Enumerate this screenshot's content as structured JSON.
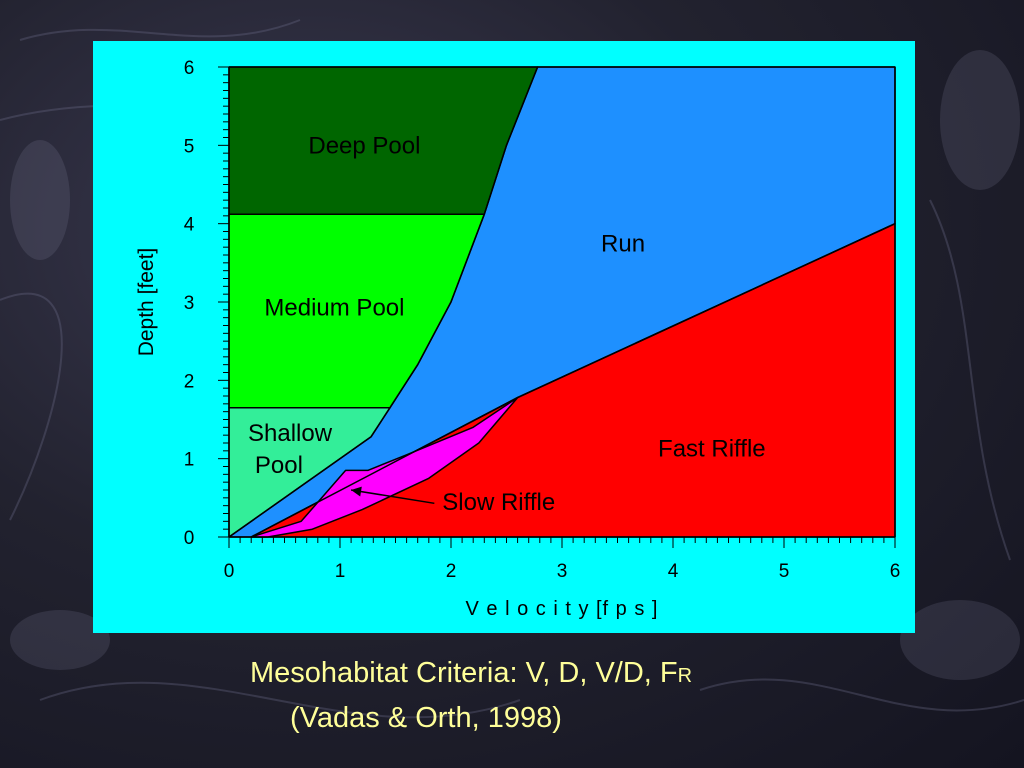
{
  "slide": {
    "caption_line1": "Mesohabitat Criteria: V, D, V/D, F",
    "caption_line1_subscript": "R",
    "caption_line2": "(Vadas & Orth, 1998)"
  },
  "colors": {
    "panel_background": "#00ffff",
    "caption_text": "#ffff99",
    "deep_pool": "#006600",
    "medium_pool": "#00ff00",
    "shallow_pool": "#33ee99",
    "run": "#1e90ff",
    "slow_riffle": "#ff00ff",
    "fast_riffle": "#ff0000"
  },
  "chart_data": {
    "type": "area",
    "xlabel": "V e l o c i t y  [f p s ]",
    "ylabel": "Depth [feet]",
    "xlim": [
      0,
      6
    ],
    "ylim": [
      0,
      6
    ],
    "x_ticks": [
      "0",
      "1",
      "2",
      "3",
      "4",
      "5",
      "6"
    ],
    "y_ticks": [
      "0",
      "1",
      "2",
      "3",
      "4",
      "5",
      "6"
    ],
    "grid": false,
    "regions": [
      {
        "name": "Run",
        "color": "#1e90ff",
        "polygon": [
          [
            0,
            0
          ],
          [
            2.78,
            6
          ],
          [
            6,
            6
          ],
          [
            6,
            4
          ],
          [
            2.6,
            1.78
          ],
          [
            0.2,
            0
          ]
        ]
      },
      {
        "name": "Deep Pool",
        "color": "#006600",
        "polygon": [
          [
            0,
            4.12
          ],
          [
            2.3,
            4.12
          ],
          [
            2.5,
            5
          ],
          [
            2.78,
            6
          ],
          [
            0,
            6
          ]
        ]
      },
      {
        "name": "Medium Pool",
        "color": "#00ff00",
        "polygon": [
          [
            0,
            1.65
          ],
          [
            1.45,
            1.65
          ],
          [
            1.7,
            2.2
          ],
          [
            2.0,
            3.0
          ],
          [
            2.3,
            4.12
          ],
          [
            0,
            4.12
          ]
        ]
      },
      {
        "name": "Shallow Pool",
        "color": "#33ee99",
        "polygon": [
          [
            0,
            0
          ],
          [
            1.28,
            1.28
          ],
          [
            1.45,
            1.65
          ],
          [
            0,
            1.65
          ]
        ]
      },
      {
        "name": "Fast Riffle",
        "color": "#ff0000",
        "polygon": [
          [
            0.2,
            0
          ],
          [
            2.6,
            1.78
          ],
          [
            6,
            4
          ],
          [
            6,
            0
          ]
        ]
      },
      {
        "name": "Slow Riffle",
        "color": "#ff00ff",
        "polygon": [
          [
            0.2,
            0
          ],
          [
            0.65,
            0.2
          ],
          [
            1.05,
            0.85
          ],
          [
            1.25,
            0.85
          ],
          [
            1.6,
            1.05
          ],
          [
            2.2,
            1.4
          ],
          [
            2.6,
            1.78
          ],
          [
            2.25,
            1.2
          ],
          [
            1.8,
            0.75
          ],
          [
            1.2,
            0.35
          ],
          [
            0.75,
            0.1
          ],
          [
            0.35,
            0
          ]
        ]
      }
    ],
    "boundary_lines": [
      {
        "name": "pool-run boundary",
        "points": [
          [
            0,
            0
          ],
          [
            0.6,
            0.6
          ],
          [
            1.28,
            1.28
          ],
          [
            1.45,
            1.65
          ],
          [
            1.7,
            2.2
          ],
          [
            2.0,
            3.0
          ],
          [
            2.3,
            4.12
          ],
          [
            2.5,
            5
          ],
          [
            2.78,
            6
          ]
        ]
      },
      {
        "name": "deep-medium boundary",
        "points": [
          [
            0,
            4.12
          ],
          [
            2.3,
            4.12
          ]
        ]
      },
      {
        "name": "medium-shallow boundary",
        "points": [
          [
            0,
            1.65
          ],
          [
            1.45,
            1.65
          ]
        ]
      },
      {
        "name": "riffle-run boundary",
        "points": [
          [
            0.2,
            0
          ],
          [
            2.6,
            1.78
          ],
          [
            6,
            4
          ]
        ]
      }
    ],
    "annotations": [
      {
        "text": "Deep Pool",
        "x": 1.22,
        "y": 5.0
      },
      {
        "text": "Medium Pool",
        "x": 0.95,
        "y": 2.93
      },
      {
        "text": "Shallow",
        "x": 0.55,
        "y": 1.33
      },
      {
        "text": "Pool",
        "x": 0.45,
        "y": 0.92
      },
      {
        "text": "Run",
        "x": 3.55,
        "y": 3.75
      },
      {
        "text": "Fast Riffle",
        "x": 4.35,
        "y": 1.13
      },
      {
        "text": "Slow Riffle",
        "x": 2.43,
        "y": 0.45
      }
    ],
    "arrow": {
      "from": [
        1.85,
        0.43
      ],
      "to": [
        1.1,
        0.6
      ]
    }
  }
}
